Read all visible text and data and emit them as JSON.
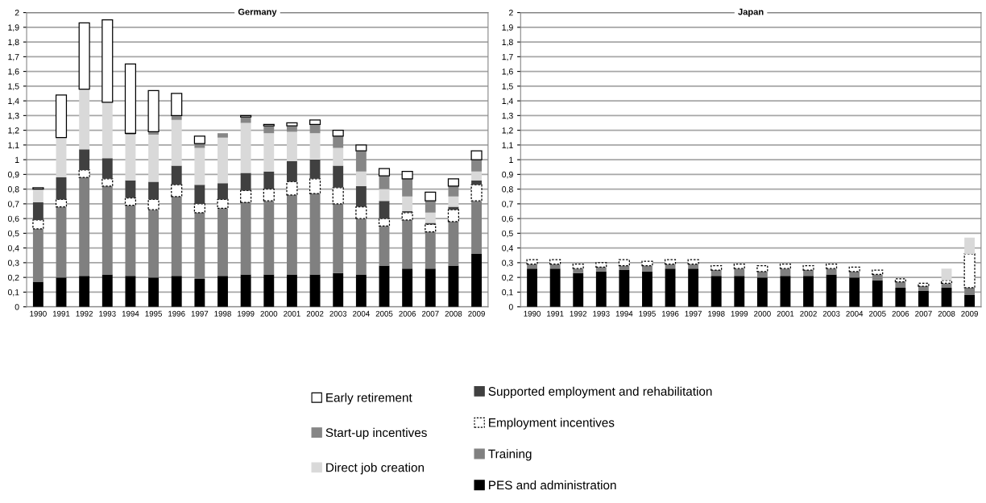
{
  "chart_data": [
    {
      "type": "bar",
      "title": "Germany",
      "stacked": true,
      "grid": "y",
      "legend": "bottom",
      "categories": [
        "1990",
        "1991",
        "1992",
        "1993",
        "1994",
        "1995",
        "1996",
        "1997",
        "1998",
        "1999",
        "2000",
        "2001",
        "2002",
        "2003",
        "2004",
        "2005",
        "2006",
        "2007",
        "2008",
        "2009"
      ],
      "ylim": [
        0,
        2
      ],
      "yticks": [
        0,
        {
          "value": 0.1,
          "label": "0,1"
        },
        {
          "value": 0.2,
          "label": "0,2"
        },
        {
          "value": 0.3,
          "label": "0,3"
        },
        {
          "value": 0.4,
          "label": "0,4"
        },
        {
          "value": 0.5,
          "label": "0,5"
        },
        {
          "value": 0.6,
          "label": "0,6"
        },
        {
          "value": 0.7,
          "label": "0,7"
        },
        {
          "value": 0.8,
          "label": "0,8"
        },
        {
          "value": 0.9,
          "label": "0,9"
        },
        1,
        {
          "value": 1.1,
          "label": "1,1"
        },
        {
          "value": 1.2,
          "label": "1,2"
        },
        {
          "value": 1.3,
          "label": "1,3"
        },
        {
          "value": 1.4,
          "label": "1,4"
        },
        {
          "value": 1.5,
          "label": "1,5"
        },
        {
          "value": 1.6,
          "label": "1,6"
        },
        {
          "value": 1.7,
          "label": "1,7"
        },
        {
          "value": 1.8,
          "label": "1,8"
        },
        {
          "value": 1.9,
          "label": "1,9"
        },
        2
      ],
      "series": [
        {
          "name": "PES and administration",
          "color": "#000000",
          "values": [
            0.17,
            0.2,
            0.21,
            0.22,
            0.21,
            0.2,
            0.21,
            0.19,
            0.21,
            0.22,
            0.22,
            0.22,
            0.22,
            0.23,
            0.22,
            0.28,
            0.26,
            0.26,
            0.28,
            0.36
          ]
        },
        {
          "name": "Training",
          "color": "#808080",
          "values": [
            0.36,
            0.48,
            0.67,
            0.6,
            0.48,
            0.46,
            0.54,
            0.45,
            0.46,
            0.49,
            0.5,
            0.54,
            0.55,
            0.47,
            0.38,
            0.27,
            0.33,
            0.25,
            0.3,
            0.36
          ]
        },
        {
          "name": "Employment incentives",
          "color": "#ffffff",
          "line_style": "dashed",
          "values": [
            0.06,
            0.05,
            0.05,
            0.05,
            0.05,
            0.07,
            0.08,
            0.06,
            0.06,
            0.08,
            0.08,
            0.09,
            0.1,
            0.11,
            0.08,
            0.05,
            0.05,
            0.05,
            0.08,
            0.11
          ]
        },
        {
          "name": "Supported employment and rehabilitation",
          "color": "#404040",
          "values": [
            0.12,
            0.15,
            0.14,
            0.14,
            0.12,
            0.12,
            0.13,
            0.13,
            0.11,
            0.12,
            0.12,
            0.14,
            0.13,
            0.15,
            0.14,
            0.12,
            0.01,
            0.01,
            0.02,
            0.03
          ]
        },
        {
          "name": "Direct job creation",
          "color": "#d9d9d9",
          "values": [
            0.09,
            0.27,
            0.41,
            0.38,
            0.31,
            0.32,
            0.31,
            0.25,
            0.31,
            0.34,
            0.26,
            0.2,
            0.18,
            0.12,
            0.1,
            0.08,
            0.1,
            0.07,
            0.07,
            0.06
          ]
        },
        {
          "name": "Start-up incentives",
          "color": "#868686",
          "values": [
            0,
            0,
            0,
            0,
            0.01,
            0.02,
            0.03,
            0.03,
            0.03,
            0.04,
            0.05,
            0.04,
            0.06,
            0.08,
            0.14,
            0.09,
            0.12,
            0.08,
            0.07,
            0.08
          ]
        },
        {
          "name": "Early retirement",
          "color": "#ffffff",
          "line_style": "solid",
          "values": [
            0.01,
            0.29,
            0.45,
            0.56,
            0.47,
            0.28,
            0.15,
            0.05,
            0,
            0.01,
            0.01,
            0.02,
            0.03,
            0.04,
            0.04,
            0.05,
            0.05,
            0.06,
            0.05,
            0.06
          ]
        }
      ]
    },
    {
      "type": "bar",
      "title": "Japan",
      "stacked": true,
      "grid": "y",
      "categories": [
        "1990",
        "1991",
        "1992",
        "1993",
        "1994",
        "1995",
        "1996",
        "1997",
        "1998",
        "1999",
        "2000",
        "2001",
        "2002",
        "2003",
        "2004",
        "2005",
        "2006",
        "2007",
        "2008",
        "2009"
      ],
      "ylim": [
        0,
        2
      ],
      "yticks": [
        0,
        {
          "value": 0.1,
          "label": "0,1"
        },
        {
          "value": 0.2,
          "label": "0,2"
        },
        {
          "value": 0.3,
          "label": "0,3"
        },
        {
          "value": 0.4,
          "label": "0,4"
        },
        {
          "value": 0.5,
          "label": "0,5"
        },
        {
          "value": 0.6,
          "label": "0,6"
        },
        {
          "value": 0.7,
          "label": "0,7"
        },
        {
          "value": 0.8,
          "label": "0,8"
        },
        {
          "value": 0.9,
          "label": "0,9"
        },
        1,
        {
          "value": 1.1,
          "label": "1,1"
        },
        {
          "value": 1.2,
          "label": "1,2"
        },
        {
          "value": 1.3,
          "label": "1,3"
        },
        {
          "value": 1.4,
          "label": "1,4"
        },
        {
          "value": 1.5,
          "label": "1,5"
        },
        {
          "value": 1.6,
          "label": "1,6"
        },
        {
          "value": 1.7,
          "label": "1,7"
        },
        {
          "value": 1.8,
          "label": "1,8"
        },
        {
          "value": 1.9,
          "label": "1,9"
        },
        2
      ],
      "series": [
        {
          "color": "#000000",
          "values": [
            0.26,
            0.26,
            0.23,
            0.24,
            0.25,
            0.24,
            0.26,
            0.26,
            0.21,
            0.21,
            0.2,
            0.21,
            0.21,
            0.22,
            0.2,
            0.18,
            0.13,
            0.11,
            0.13,
            0.08
          ]
        },
        {
          "color": "#808080",
          "values": [
            0.03,
            0.03,
            0.03,
            0.03,
            0.03,
            0.04,
            0.03,
            0.03,
            0.04,
            0.05,
            0.04,
            0.05,
            0.04,
            0.04,
            0.04,
            0.04,
            0.04,
            0.03,
            0.03,
            0.05
          ]
        },
        {
          "color": "#ffffff",
          "line_style": "dashed",
          "values": [
            0.03,
            0.03,
            0.03,
            0.03,
            0.04,
            0.03,
            0.03,
            0.03,
            0.03,
            0.03,
            0.04,
            0.03,
            0.03,
            0.03,
            0.03,
            0.03,
            0.02,
            0.02,
            0.02,
            0.23
          ]
        },
        {
          "color": "#d9d9d9",
          "values": [
            0,
            0,
            0,
            0,
            0,
            0,
            0,
            0,
            0,
            0,
            0,
            0,
            0,
            0,
            0,
            0,
            0,
            0,
            0.08,
            0.11
          ]
        }
      ]
    }
  ]
}
